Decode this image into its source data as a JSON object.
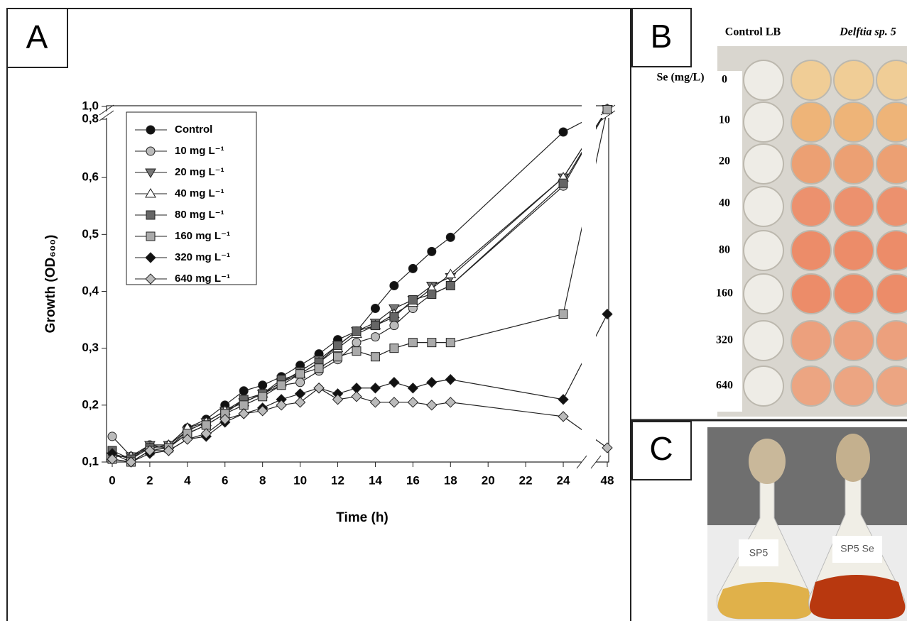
{
  "panel_labels": [
    "A",
    "B",
    "C"
  ],
  "chart_data": {
    "type": "line",
    "xlabel": "Time (h)",
    "ylabel": "Growth (OD₆₀₀)",
    "x": [
      0,
      1,
      2,
      3,
      4,
      5,
      6,
      7,
      8,
      9,
      10,
      11,
      12,
      13,
      14,
      15,
      16,
      17,
      18,
      24,
      48
    ],
    "xlim": [
      0,
      48
    ],
    "xbreak": [
      25,
      47
    ],
    "xticks": [
      0,
      2,
      4,
      6,
      8,
      10,
      12,
      14,
      16,
      18,
      20,
      22,
      24,
      48
    ],
    "ylim": [
      0.1,
      1.0
    ],
    "ybreak": [
      0.7,
      0.8
    ],
    "yticks": [
      {
        "value": 0.1,
        "label": "0,1"
      },
      {
        "value": 0.2,
        "label": "0,2"
      },
      {
        "value": 0.3,
        "label": "0,3"
      },
      {
        "value": 0.4,
        "label": "0,4"
      },
      {
        "value": 0.5,
        "label": "0,5"
      },
      {
        "value": 0.6,
        "label": "0,6"
      },
      {
        "value": 0.8,
        "label": "0,8"
      },
      {
        "value": 1.0,
        "label": "1,0"
      }
    ],
    "series": [
      {
        "name": "Control",
        "color": "#111111",
        "marker": "circle",
        "values": [
          0.115,
          0.105,
          0.13,
          0.13,
          0.16,
          0.175,
          0.2,
          0.225,
          0.235,
          0.25,
          0.27,
          0.29,
          0.315,
          0.33,
          0.37,
          0.41,
          0.44,
          0.47,
          0.495,
          0.68,
          0.96
        ]
      },
      {
        "name": "10 mg L⁻¹",
        "color": "#bbbbbb",
        "marker": "circle",
        "values": [
          0.145,
          0.11,
          0.13,
          0.125,
          0.155,
          0.17,
          0.19,
          0.21,
          0.22,
          0.235,
          0.24,
          0.26,
          0.28,
          0.31,
          0.32,
          0.34,
          0.37,
          0.395,
          0.41,
          0.585,
          0.96
        ]
      },
      {
        "name": "20 mg L⁻¹",
        "color": "#777777",
        "marker": "triangle-down",
        "values": [
          0.11,
          0.11,
          0.13,
          0.13,
          0.155,
          0.17,
          0.19,
          0.205,
          0.22,
          0.24,
          0.26,
          0.28,
          0.305,
          0.33,
          0.345,
          0.37,
          0.385,
          0.41,
          0.425,
          0.6,
          0.96
        ]
      },
      {
        "name": "40 mg L⁻¹",
        "color": "#ffffff",
        "marker": "triangle-up",
        "values": [
          0.11,
          0.11,
          0.125,
          0.13,
          0.16,
          0.17,
          0.19,
          0.205,
          0.22,
          0.24,
          0.255,
          0.275,
          0.3,
          0.325,
          0.34,
          0.36,
          0.38,
          0.405,
          0.43,
          0.6,
          0.96
        ]
      },
      {
        "name": "80 mg L⁻¹",
        "color": "#666666",
        "marker": "square",
        "values": [
          0.12,
          0.105,
          0.125,
          0.125,
          0.15,
          0.165,
          0.185,
          0.21,
          0.22,
          0.245,
          0.255,
          0.275,
          0.305,
          0.33,
          0.34,
          0.355,
          0.385,
          0.395,
          0.41,
          0.59,
          0.95
        ]
      },
      {
        "name": "160 mg L⁻¹",
        "color": "#aaaaaa",
        "marker": "square",
        "values": [
          0.105,
          0.1,
          0.12,
          0.125,
          0.15,
          0.165,
          0.185,
          0.2,
          0.215,
          0.235,
          0.255,
          0.265,
          0.285,
          0.295,
          0.285,
          0.3,
          0.31,
          0.31,
          0.31,
          0.36,
          0.95
        ]
      },
      {
        "name": "320 mg L⁻¹",
        "color": "#111111",
        "marker": "diamond",
        "values": [
          0.115,
          0.1,
          0.115,
          0.12,
          0.14,
          0.145,
          0.17,
          0.185,
          0.195,
          0.21,
          0.22,
          0.23,
          0.22,
          0.23,
          0.23,
          0.24,
          0.23,
          0.24,
          0.245,
          0.21,
          0.36
        ]
      },
      {
        "name": "640 mg L⁻¹",
        "color": "#bbbbbb",
        "marker": "diamond",
        "values": [
          0.105,
          0.1,
          0.12,
          0.12,
          0.14,
          0.15,
          0.175,
          0.185,
          0.19,
          0.2,
          0.205,
          0.23,
          0.21,
          0.215,
          0.205,
          0.205,
          0.205,
          0.2,
          0.205,
          0.18,
          0.125
        ]
      }
    ]
  },
  "plate": {
    "column_headers": [
      "Control LB",
      "Delftia sp. 5"
    ],
    "row_title": "Se (mg/L)",
    "row_labels": [
      "0",
      "10",
      "20",
      "40",
      "80",
      "160",
      "320",
      "640"
    ]
  },
  "flasks": {
    "labels": [
      "SP5",
      "SP5 Se"
    ]
  }
}
